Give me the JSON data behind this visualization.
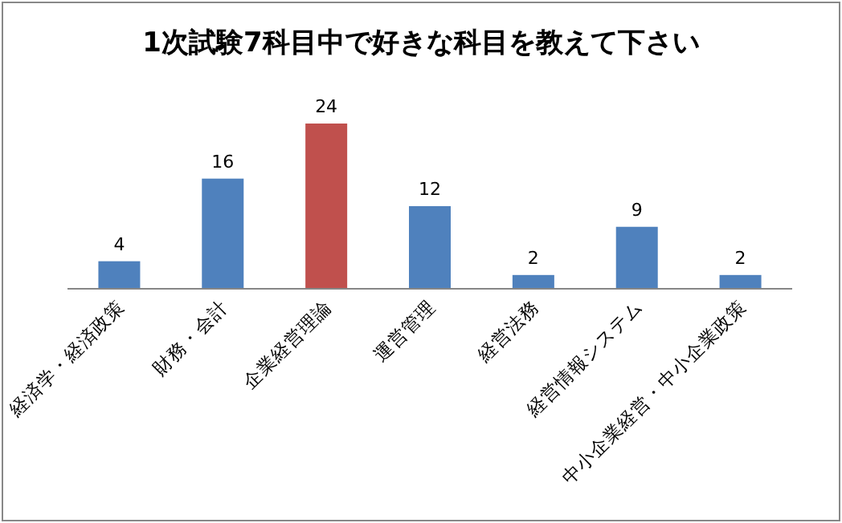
{
  "chart_data": {
    "type": "bar",
    "title": "1次試験7科目中で好きな科目を教えて下さい",
    "categories": [
      "経済学・経済政策",
      "財務・会計",
      "企業経営理論",
      "運営管理",
      "経営法務",
      "経営情報システム",
      "中小企業経営・中小企業政策"
    ],
    "values": [
      4,
      16,
      24,
      12,
      2,
      9,
      2
    ],
    "colors": [
      "#4f81bd",
      "#4f81bd",
      "#c0504d",
      "#4f81bd",
      "#4f81bd",
      "#4f81bd",
      "#4f81bd"
    ],
    "data_labels": true
  }
}
